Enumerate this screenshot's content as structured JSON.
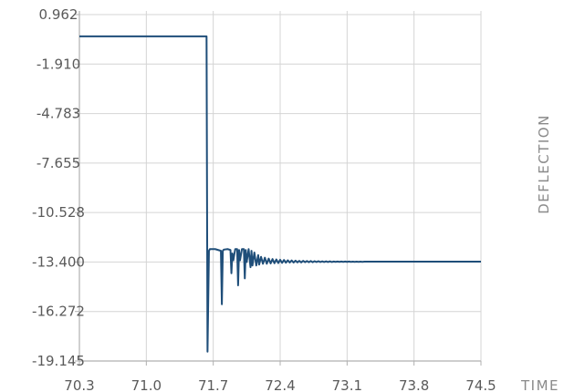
{
  "chart_data": {
    "type": "line",
    "title": "",
    "xlabel": "TIME",
    "ylabel": "DEFLECTION",
    "xlim": [
      70.3,
      74.5
    ],
    "ylim": [
      -19.145,
      0.962
    ],
    "x_ticks": [
      "70.3",
      "71.0",
      "71.7",
      "72.4",
      "73.1",
      "73.8",
      "74.5"
    ],
    "y_ticks": [
      "0.962",
      "-1.910",
      "-4.783",
      "-7.655",
      "-10.528",
      "-13.400",
      "-16.272",
      "-19.145"
    ],
    "grid": true,
    "legend": "none",
    "colors": {
      "line": "#1f4e79",
      "grid": "#d4d4d4",
      "axis": "#b0b0b0"
    },
    "series": [
      {
        "x": [
          70.3,
          71.63,
          71.64,
          71.655,
          71.665,
          71.68,
          71.72,
          71.78,
          71.79,
          71.8,
          71.81,
          71.85,
          71.88,
          71.89,
          71.9,
          71.91,
          71.93,
          71.95,
          71.96,
          71.97,
          71.98,
          72.0,
          72.02,
          72.03,
          72.04,
          72.05,
          72.07,
          72.09,
          72.1,
          72.11,
          72.13,
          72.15,
          72.17,
          72.18,
          72.2,
          72.22,
          72.24,
          72.26,
          72.28,
          72.3,
          72.32,
          72.34,
          72.36,
          72.38,
          72.4,
          72.42,
          72.44,
          72.46,
          72.48,
          72.5,
          72.52,
          72.54,
          72.56,
          72.58,
          72.6,
          72.62,
          72.64,
          72.66,
          72.68,
          72.7,
          72.72,
          72.74,
          72.76,
          72.78,
          72.8,
          72.82,
          72.84,
          72.86,
          72.88,
          72.9,
          72.92,
          72.94,
          72.96,
          72.98,
          73.0,
          73.02,
          73.04,
          73.06,
          73.08,
          73.1,
          73.12,
          73.14,
          73.16,
          73.18,
          73.2,
          73.22,
          73.24,
          73.26,
          73.28,
          73.3,
          73.35,
          74.5
        ],
        "y": [
          -0.3,
          -0.3,
          -18.6,
          -12.75,
          -12.65,
          -12.65,
          -12.65,
          -12.75,
          -15.85,
          -12.75,
          -12.68,
          -12.65,
          -12.7,
          -14.05,
          -12.9,
          -13.3,
          -12.65,
          -12.65,
          -14.75,
          -12.7,
          -13.3,
          -12.65,
          -12.65,
          -14.35,
          -12.7,
          -13.4,
          -12.65,
          -13.7,
          -12.75,
          -13.6,
          -12.85,
          -13.6,
          -13.0,
          -13.55,
          -13.1,
          -13.5,
          -13.15,
          -13.5,
          -13.2,
          -13.48,
          -13.23,
          -13.47,
          -13.25,
          -13.46,
          -13.27,
          -13.45,
          -13.28,
          -13.44,
          -13.3,
          -13.43,
          -13.31,
          -13.43,
          -13.32,
          -13.42,
          -13.33,
          -13.42,
          -13.33,
          -13.41,
          -13.34,
          -13.41,
          -13.34,
          -13.41,
          -13.35,
          -13.4,
          -13.35,
          -13.4,
          -13.36,
          -13.4,
          -13.36,
          -13.4,
          -13.36,
          -13.4,
          -13.37,
          -13.39,
          -13.37,
          -13.39,
          -13.37,
          -13.39,
          -13.37,
          -13.39,
          -13.37,
          -13.39,
          -13.38,
          -13.39,
          -13.38,
          -13.39,
          -13.38,
          -13.39,
          -13.38,
          -13.38,
          -13.38,
          -13.38
        ]
      }
    ]
  }
}
